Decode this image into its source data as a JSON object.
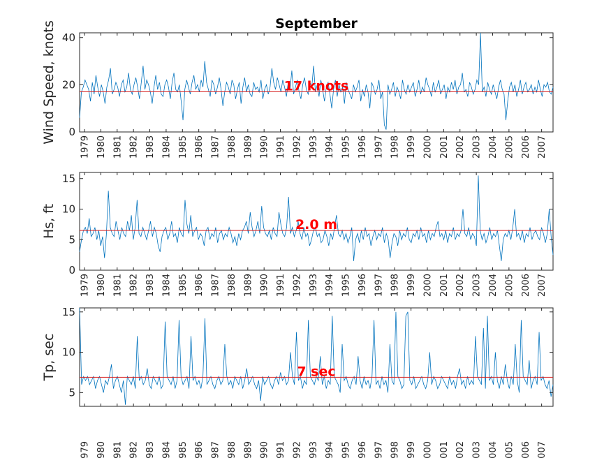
{
  "chart_data": [
    {
      "type": "line",
      "title": "September",
      "ylabel": "Wind Speed, knots",
      "ylim": [
        0,
        42
      ],
      "yticks": [
        0,
        20,
        40
      ],
      "xlim": [
        1978.7,
        2007.7
      ],
      "xticks": [
        "1979",
        "1980",
        "1981",
        "1982",
        "1983",
        "1984",
        "1985",
        "1986",
        "1987",
        "1988",
        "1989",
        "1990",
        "1991",
        "1992",
        "1993",
        "1994",
        "1995",
        "1996",
        "1997",
        "1998",
        "1999",
        "2000",
        "2001",
        "2002",
        "2003",
        "2004",
        "2005",
        "2006",
        "2007"
      ],
      "reference_line": 17,
      "annotation": "17 knots",
      "line_color": "#0072BD",
      "reference_color": "#D62020",
      "series": [
        {
          "values": [
            6,
            17,
            19,
            22,
            20,
            18,
            13,
            21,
            16,
            24,
            19,
            15,
            20,
            17,
            12,
            19,
            22,
            27,
            16,
            18,
            21,
            19,
            15,
            20,
            22,
            17,
            19,
            25,
            18,
            16,
            20,
            23,
            19,
            14,
            21,
            28,
            18,
            22,
            20,
            17,
            12,
            19,
            24,
            18,
            21,
            16,
            15,
            20,
            22,
            19,
            14,
            21,
            25,
            18,
            17,
            20,
            13,
            5,
            18,
            22,
            19,
            16,
            21,
            24,
            18,
            20,
            17,
            22,
            19,
            30,
            21,
            18,
            15,
            22,
            20,
            16,
            19,
            23,
            18,
            11,
            17,
            21,
            19,
            16,
            22,
            20,
            14,
            18,
            21,
            12,
            19,
            23,
            17,
            20,
            16,
            15,
            21,
            18,
            19,
            17,
            22,
            14,
            18,
            20,
            16,
            19,
            27,
            21,
            18,
            23,
            20,
            17,
            22,
            19,
            15,
            21,
            18,
            26,
            16,
            19,
            22,
            17,
            14,
            20,
            23,
            18,
            16,
            21,
            19,
            28,
            17,
            20,
            15,
            22,
            18,
            13,
            19,
            21,
            16,
            10,
            18,
            22,
            15,
            20,
            17,
            19,
            12,
            21,
            18,
            16,
            14,
            20,
            17,
            19,
            22,
            13,
            18,
            15,
            20,
            17,
            10,
            21,
            19,
            16,
            18,
            22,
            14,
            17,
            3,
            1,
            20,
            16,
            18,
            21,
            15,
            19,
            17,
            14,
            22,
            18,
            16,
            20,
            17,
            19,
            21,
            15,
            18,
            22,
            16,
            19,
            17,
            23,
            20,
            18,
            15,
            21,
            17,
            19,
            22,
            16,
            18,
            20,
            14,
            19,
            17,
            21,
            18,
            22,
            16,
            19,
            20,
            25,
            17,
            18,
            15,
            21,
            19,
            16,
            18,
            22,
            20,
            42,
            17,
            19,
            15,
            21,
            18,
            16,
            20,
            17,
            14,
            19,
            22,
            18,
            16,
            5,
            13,
            19,
            21,
            17,
            20,
            15,
            18,
            22,
            16,
            19,
            21,
            17,
            18,
            20,
            16,
            19,
            17,
            22,
            18,
            15,
            20,
            19,
            21,
            17,
            16,
            19
          ]
        }
      ]
    },
    {
      "type": "line",
      "ylabel": "Hs, ft",
      "ylim": [
        0,
        16
      ],
      "yticks": [
        0,
        5,
        10,
        15
      ],
      "xlim": [
        1978.7,
        2007.7
      ],
      "xticks": [
        "1979",
        "1980",
        "1981",
        "1982",
        "1983",
        "1984",
        "1985",
        "1986",
        "1987",
        "1988",
        "1989",
        "1990",
        "1991",
        "1992",
        "1993",
        "1994",
        "1995",
        "1996",
        "1997",
        "1998",
        "1999",
        "2000",
        "2001",
        "2002",
        "2003",
        "2004",
        "2005",
        "2006",
        "2007"
      ],
      "reference_line": 6.5,
      "annotation": "2.0 m",
      "line_color": "#0072BD",
      "reference_color": "#D62020",
      "series": [
        {
          "values": [
            3,
            5,
            6.5,
            7,
            6,
            8.5,
            5.5,
            6,
            7,
            5,
            6.5,
            4,
            5.5,
            2,
            6,
            13,
            7,
            6,
            5.5,
            8,
            6.5,
            5,
            7,
            6,
            5.5,
            8,
            6.5,
            9,
            5,
            7,
            11.5,
            6,
            5.5,
            7,
            6,
            5,
            6.5,
            8,
            5.5,
            7,
            6,
            4,
            3,
            5.5,
            6.5,
            7,
            5,
            6,
            8,
            5.5,
            6,
            4.5,
            7,
            6,
            5.5,
            11.5,
            7.5,
            6,
            9,
            5.5,
            6.5,
            7,
            5,
            6,
            5.5,
            4,
            6.5,
            7,
            5,
            6,
            5.5,
            7,
            4.5,
            6,
            6.5,
            5,
            6,
            5.5,
            7,
            6,
            4.5,
            5.5,
            4,
            6,
            5,
            6.5,
            7,
            8,
            6,
            9.5,
            7,
            5.5,
            6.5,
            8,
            6,
            10.5,
            7,
            6,
            5.5,
            6.5,
            5,
            7,
            6,
            5.5,
            9.5,
            7.5,
            6,
            5.5,
            7,
            12,
            6,
            7,
            5.5,
            6.5,
            8,
            6,
            5,
            7,
            5.5,
            6,
            4,
            5,
            6.5,
            7,
            5.5,
            6,
            4.5,
            5,
            6.5,
            5.5,
            4,
            6,
            5,
            7,
            9,
            6,
            5.5,
            6.5,
            5,
            6,
            4.5,
            5.5,
            7,
            1.5,
            5,
            6,
            4.5,
            6.5,
            5,
            7,
            5.5,
            6,
            4,
            5.5,
            6.5,
            5,
            6,
            5.5,
            7,
            4.5,
            6,
            5,
            2,
            4.5,
            6,
            5.5,
            4,
            6.5,
            5,
            6,
            5.5,
            7,
            5,
            4.5,
            6,
            5.5,
            6.5,
            5,
            7,
            5.5,
            6,
            4.5,
            6.5,
            5,
            6,
            5.5,
            7,
            8,
            5.5,
            6,
            5,
            6.5,
            4.5,
            6,
            5.5,
            7,
            5,
            6,
            5.5,
            6.5,
            10,
            6,
            5.5,
            7,
            5,
            6,
            5.5,
            4,
            15.5,
            6.5,
            5,
            6,
            4.5,
            5.5,
            7,
            5,
            6,
            5.5,
            6.5,
            4,
            1.5,
            5,
            6,
            5.5,
            6.5,
            5,
            7,
            10,
            5.5,
            6,
            5,
            6.5,
            4.5,
            6,
            5.5,
            7,
            5,
            6,
            6.5,
            5.5,
            5,
            7,
            6,
            4.5,
            6,
            10,
            5.5,
            2.5
          ]
        }
      ]
    },
    {
      "type": "line",
      "ylabel": "Tp, sec",
      "ylim": [
        3.3,
        15.5
      ],
      "yticks": [
        5,
        10,
        15
      ],
      "xlim": [
        1978.7,
        2007.7
      ],
      "xticks": [
        "1979",
        "1980",
        "1981",
        "1982",
        "1983",
        "1984",
        "1985",
        "1986",
        "1987",
        "1988",
        "1989",
        "1990",
        "1991",
        "1992",
        "1993",
        "1994",
        "1995",
        "1996",
        "1997",
        "1998",
        "1999",
        "2000",
        "2001",
        "2002",
        "2003",
        "2004",
        "2005",
        "2006",
        "2007"
      ],
      "reference_line": 6.9,
      "annotation": "7 sec",
      "line_color": "#0072BD",
      "reference_color": "#D62020",
      "series": [
        {
          "values": [
            15.5,
            6,
            7,
            6.5,
            7,
            6,
            6.5,
            7,
            5.5,
            6.5,
            7,
            6,
            5,
            6.5,
            6,
            7,
            8.5,
            5.5,
            6.5,
            7,
            6,
            5,
            6.5,
            3.5,
            7,
            6.5,
            6,
            7,
            5.5,
            12,
            6.5,
            7,
            6,
            6.5,
            8,
            6,
            5.5,
            7,
            6.5,
            6,
            7,
            5.5,
            6,
            13.8,
            7,
            6.5,
            6,
            7,
            5.5,
            6.5,
            14,
            7,
            6,
            6.5,
            7,
            5.5,
            12,
            6.5,
            7,
            6,
            6.5,
            5.5,
            7,
            14.2,
            6,
            6.5,
            7,
            6,
            5.5,
            6.5,
            7,
            6,
            6.5,
            11,
            7,
            6,
            6.5,
            5.5,
            7,
            6.5,
            6,
            7,
            5.5,
            6.5,
            8,
            6,
            6.5,
            7,
            6,
            5.5,
            6.5,
            4,
            7,
            6,
            6.5,
            7,
            6,
            5.5,
            6.5,
            7,
            6,
            7.5,
            6.5,
            7,
            6,
            6.5,
            10,
            7,
            6,
            12.5,
            6.5,
            7,
            5.5,
            6.5,
            6,
            14,
            7,
            6.5,
            6,
            7,
            6.5,
            9.5,
            6,
            7,
            5.5,
            6.5,
            6,
            14.5,
            7,
            6.5,
            6,
            5,
            11,
            6.5,
            7,
            6,
            5.5,
            6.5,
            7,
            6,
            9.5,
            6.5,
            5.5,
            7,
            6,
            6.5,
            5.5,
            7,
            14,
            6,
            6.5,
            5.5,
            7,
            6,
            6.5,
            5,
            11,
            6.5,
            6,
            15,
            7,
            6.5,
            5.5,
            6,
            14.5,
            15,
            6.5,
            6,
            7,
            5.5,
            6,
            6.5,
            7,
            6,
            5.5,
            6.5,
            10,
            6,
            7,
            6.5,
            5.5,
            6,
            7,
            6.5,
            6,
            5.5,
            7,
            6,
            6.5,
            5.5,
            7,
            8,
            6,
            6.5,
            5.5,
            7,
            6,
            6.5,
            6,
            12,
            7,
            6.5,
            6,
            13,
            5.5,
            14.5,
            6.5,
            7,
            6,
            10,
            6.5,
            5.5,
            7,
            6,
            8.5,
            6.5,
            5.5,
            7,
            6,
            11,
            6.5,
            5,
            14,
            7,
            6.5,
            6,
            9,
            5.5,
            6.5,
            7,
            6,
            12.5,
            6.5,
            7,
            6,
            5.5,
            6.5,
            4.5,
            6
          ]
        }
      ]
    }
  ]
}
